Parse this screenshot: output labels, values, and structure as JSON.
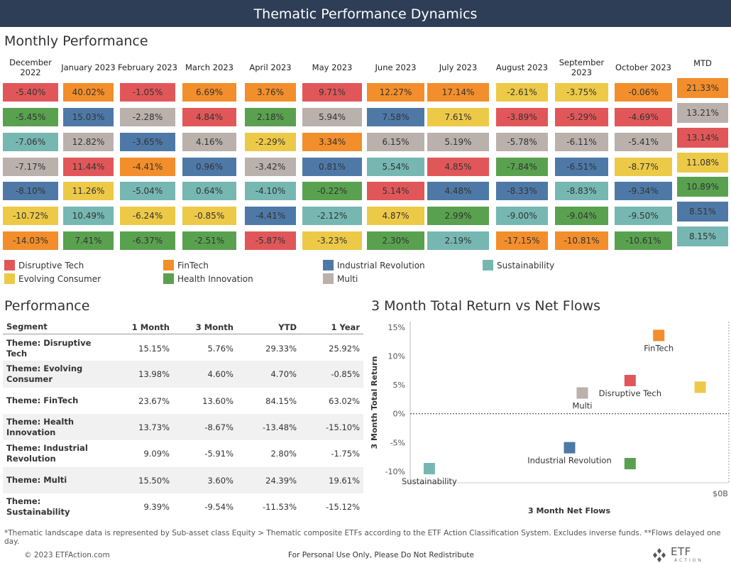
{
  "title": "Thematic Performance Dynamics",
  "monthly": {
    "title": "Monthly Performance",
    "months": [
      "December 2022",
      "January 2023",
      "February 2023",
      "March 2023",
      "April 2023",
      "May 2023",
      "June 2023",
      "July 2023",
      "August 2023",
      "September 2023",
      "October 2023",
      "MTD"
    ],
    "columns": [
      [
        {
          "v": "-5.40%",
          "t": "DT"
        },
        {
          "v": "-5.45%",
          "t": "HI"
        },
        {
          "v": "-7.06%",
          "t": "SU"
        },
        {
          "v": "-7.17%",
          "t": "MU"
        },
        {
          "v": "-8.10%",
          "t": "IR"
        },
        {
          "v": "-10.72%",
          "t": "EC"
        },
        {
          "v": "-14.03%",
          "t": "FT"
        }
      ],
      [
        {
          "v": "40.02%",
          "t": "FT"
        },
        {
          "v": "15.03%",
          "t": "IR"
        },
        {
          "v": "12.82%",
          "t": "MU"
        },
        {
          "v": "11.44%",
          "t": "DT"
        },
        {
          "v": "11.26%",
          "t": "EC"
        },
        {
          "v": "10.49%",
          "t": "SU"
        },
        {
          "v": "7.41%",
          "t": "HI"
        }
      ],
      [
        {
          "v": "-1.05%",
          "t": "DT"
        },
        {
          "v": "-2.28%",
          "t": "MU"
        },
        {
          "v": "-3.65%",
          "t": "IR"
        },
        {
          "v": "-4.41%",
          "t": "FT"
        },
        {
          "v": "-5.04%",
          "t": "SU"
        },
        {
          "v": "-6.24%",
          "t": "EC"
        },
        {
          "v": "-6.37%",
          "t": "HI"
        }
      ],
      [
        {
          "v": "6.69%",
          "t": "FT"
        },
        {
          "v": "4.84%",
          "t": "DT"
        },
        {
          "v": "4.16%",
          "t": "MU"
        },
        {
          "v": "0.96%",
          "t": "IR"
        },
        {
          "v": "0.64%",
          "t": "SU"
        },
        {
          "v": "-0.85%",
          "t": "EC"
        },
        {
          "v": "-2.51%",
          "t": "HI"
        }
      ],
      [
        {
          "v": "3.76%",
          "t": "FT"
        },
        {
          "v": "2.18%",
          "t": "HI"
        },
        {
          "v": "-2.29%",
          "t": "EC"
        },
        {
          "v": "-3.42%",
          "t": "MU"
        },
        {
          "v": "-4.10%",
          "t": "SU"
        },
        {
          "v": "-4.41%",
          "t": "IR"
        },
        {
          "v": "-5.87%",
          "t": "DT"
        }
      ],
      [
        {
          "v": "9.71%",
          "t": "DT"
        },
        {
          "v": "5.94%",
          "t": "MU"
        },
        {
          "v": "3.34%",
          "t": "FT"
        },
        {
          "v": "0.81%",
          "t": "IR"
        },
        {
          "v": "-0.22%",
          "t": "HI"
        },
        {
          "v": "-2.12%",
          "t": "SU"
        },
        {
          "v": "-3.23%",
          "t": "EC"
        }
      ],
      [
        {
          "v": "12.27%",
          "t": "FT"
        },
        {
          "v": "7.58%",
          "t": "IR"
        },
        {
          "v": "6.15%",
          "t": "MU"
        },
        {
          "v": "5.54%",
          "t": "SU"
        },
        {
          "v": "5.14%",
          "t": "DT"
        },
        {
          "v": "4.87%",
          "t": "EC"
        },
        {
          "v": "2.30%",
          "t": "HI"
        }
      ],
      [
        {
          "v": "17.14%",
          "t": "FT"
        },
        {
          "v": "7.61%",
          "t": "EC"
        },
        {
          "v": "5.19%",
          "t": "MU"
        },
        {
          "v": "4.85%",
          "t": "DT"
        },
        {
          "v": "4.48%",
          "t": "IR"
        },
        {
          "v": "2.99%",
          "t": "HI"
        },
        {
          "v": "2.19%",
          "t": "SU"
        }
      ],
      [
        {
          "v": "-2.61%",
          "t": "EC"
        },
        {
          "v": "-3.89%",
          "t": "DT"
        },
        {
          "v": "-5.78%",
          "t": "MU"
        },
        {
          "v": "-7.84%",
          "t": "HI"
        },
        {
          "v": "-8.33%",
          "t": "IR"
        },
        {
          "v": "-9.00%",
          "t": "SU"
        },
        {
          "v": "-17.15%",
          "t": "FT"
        }
      ],
      [
        {
          "v": "-3.75%",
          "t": "EC"
        },
        {
          "v": "-5.29%",
          "t": "DT"
        },
        {
          "v": "-6.11%",
          "t": "MU"
        },
        {
          "v": "-6.51%",
          "t": "IR"
        },
        {
          "v": "-8.83%",
          "t": "SU"
        },
        {
          "v": "-9.04%",
          "t": "HI"
        },
        {
          "v": "-10.81%",
          "t": "FT"
        }
      ],
      [
        {
          "v": "-0.06%",
          "t": "FT"
        },
        {
          "v": "-4.69%",
          "t": "DT"
        },
        {
          "v": "-5.41%",
          "t": "MU"
        },
        {
          "v": "-8.77%",
          "t": "EC"
        },
        {
          "v": "-9.34%",
          "t": "IR"
        },
        {
          "v": "-9.50%",
          "t": "SU"
        },
        {
          "v": "-10.61%",
          "t": "HI"
        }
      ],
      [
        {
          "v": "21.33%",
          "t": "FT"
        },
        {
          "v": "13.21%",
          "t": "MU"
        },
        {
          "v": "13.14%",
          "t": "DT"
        },
        {
          "v": "11.08%",
          "t": "EC"
        },
        {
          "v": "10.89%",
          "t": "HI"
        },
        {
          "v": "8.51%",
          "t": "IR"
        },
        {
          "v": "8.15%",
          "t": "SU"
        }
      ]
    ]
  },
  "themes": {
    "DT": {
      "label": "Disruptive Tech",
      "color": "#e15759"
    },
    "FT": {
      "label": "FinTech",
      "color": "#f28e2b"
    },
    "IR": {
      "label": "Industrial Revolution",
      "color": "#4e79a7"
    },
    "SU": {
      "label": "Sustainability",
      "color": "#76b7b2"
    },
    "EC": {
      "label": "Evolving Consumer",
      "color": "#edc948"
    },
    "HI": {
      "label": "Health Innovation",
      "color": "#59a14f"
    },
    "MU": {
      "label": "Multi",
      "color": "#bab0ac"
    }
  },
  "legend_order": [
    "DT",
    "FT",
    "IR",
    "SU",
    "EC",
    "HI",
    "MU"
  ],
  "performance": {
    "title": "Performance",
    "headers": [
      "Segment",
      "1 Month",
      "3 Month",
      "YTD",
      "1 Year"
    ],
    "rows": [
      [
        "Theme: Disruptive Tech",
        "15.15%",
        "5.76%",
        "29.33%",
        "25.92%"
      ],
      [
        "Theme: Evolving Consumer",
        "13.98%",
        "4.60%",
        "4.70%",
        "-0.85%"
      ],
      [
        "Theme: FinTech",
        "23.67%",
        "13.60%",
        "84.15%",
        "63.02%"
      ],
      [
        "Theme: Health Innovation",
        "13.73%",
        "-8.67%",
        "-13.48%",
        "-15.10%"
      ],
      [
        "Theme: Industrial Revolution",
        "9.09%",
        "-5.91%",
        "2.80%",
        "-1.75%"
      ],
      [
        "Theme: Multi",
        "15.50%",
        "3.60%",
        "24.39%",
        "19.61%"
      ],
      [
        "Theme: Sustainability",
        "9.39%",
        "-9.54%",
        "-11.53%",
        "-15.12%"
      ]
    ]
  },
  "chart_data": {
    "type": "scatter",
    "title": "3 Month Total Return vs Net Flows",
    "xlabel": "3 Month Net Flows",
    "ylabel": "3 Month Total Return",
    "x_tick_labels": [
      "$0B"
    ],
    "y_ticks": [
      15,
      10,
      5,
      0,
      -5,
      -10
    ],
    "y_tick_labels": [
      "15%",
      "10%",
      "5%",
      "0%",
      "-5%",
      "-10%"
    ],
    "ylim": [
      -12,
      16
    ],
    "points": [
      {
        "theme": "FT",
        "label": "FinTech",
        "x": 0.78,
        "y": 13.6
      },
      {
        "theme": "DT",
        "label": "Disruptive Tech",
        "x": 0.69,
        "y": 5.76
      },
      {
        "theme": "MU",
        "label": "Multi",
        "x": 0.54,
        "y": 3.6
      },
      {
        "theme": "EC",
        "label": "",
        "x": 0.91,
        "y": 4.6
      },
      {
        "theme": "IR",
        "label": "Industrial Revolution",
        "x": 0.5,
        "y": -5.91
      },
      {
        "theme": "HI",
        "label": "",
        "x": 0.69,
        "y": -8.67
      },
      {
        "theme": "SU",
        "label": "Sustainability",
        "x": 0.06,
        "y": -9.54
      }
    ]
  },
  "footnote": "*Thematic landscape data is represented by Sub-asset class Equity > Thematic composite ETFs according to the ETF Action Classification System. Excludes inverse funds. **Flows delayed one day.",
  "footer": {
    "copyright": "© 2023 ETFAction.com",
    "notice": "For Personal Use Only, Please Do Not Redistribute",
    "logo_text": "ETF",
    "logo_sub": "ACTION"
  }
}
